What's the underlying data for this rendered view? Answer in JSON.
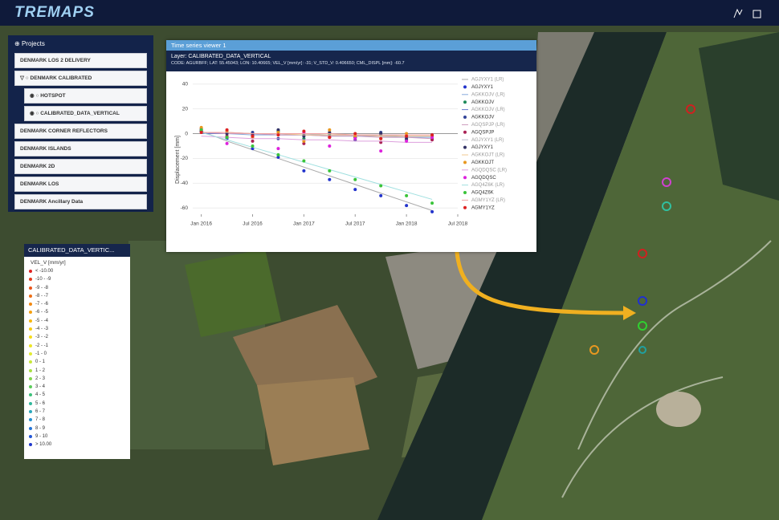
{
  "header": {
    "logo": "TREMAPS"
  },
  "projects": {
    "title": "Projects",
    "items": [
      {
        "label": "DENMARK LOS 2 DELIVERY"
      },
      {
        "label": "DENMARK CALIBRATED",
        "children": [
          {
            "label": "HOTSPOT"
          },
          {
            "label": "CALIBRATED_DATA_VERTICAL"
          }
        ]
      },
      {
        "label": "DENMARK CORNER REFLECTORS"
      },
      {
        "label": "DENMARK ISLANDS"
      },
      {
        "label": "DENMARK 2D"
      },
      {
        "label": "DENMARK LOS"
      },
      {
        "label": "DENMARK Ancillary Data"
      }
    ]
  },
  "legend_panel": {
    "title": "CALIBRATED_DATA_VERTIC...",
    "unit": "VEL_V [mm/yr]",
    "classes": [
      {
        "label": "< -10.00",
        "color": "#e02020"
      },
      {
        "label": "-10 - -9",
        "color": "#e53a1c"
      },
      {
        "label": "-9 - -8",
        "color": "#ea5418"
      },
      {
        "label": "-8 - -7",
        "color": "#ee6e14"
      },
      {
        "label": "-7 - -6",
        "color": "#f28810"
      },
      {
        "label": "-6 - -5",
        "color": "#f5a00e"
      },
      {
        "label": "-5 - -4",
        "color": "#f7b80e"
      },
      {
        "label": "-4 - -3",
        "color": "#f8cc12"
      },
      {
        "label": "-3 - -2",
        "color": "#f6dc1a"
      },
      {
        "label": "-2 - -1",
        "color": "#eee624"
      },
      {
        "label": "-1 - 0",
        "color": "#e2ec30"
      },
      {
        "label": "0 - 1",
        "color": "#c8e83a"
      },
      {
        "label": "1 - 2",
        "color": "#a8e044"
      },
      {
        "label": "2 - 3",
        "color": "#84d64e"
      },
      {
        "label": "3 - 4",
        "color": "#5ccc5a"
      },
      {
        "label": "4 - 5",
        "color": "#3cc27a"
      },
      {
        "label": "5 - 6",
        "color": "#30b89c"
      },
      {
        "label": "6 - 7",
        "color": "#2aa8bc"
      },
      {
        "label": "7 - 8",
        "color": "#2690d0"
      },
      {
        "label": "8 - 9",
        "color": "#2474d8"
      },
      {
        "label": "9 - 10",
        "color": "#2256d8"
      },
      {
        "label": "> 10.00",
        "color": "#2038cc"
      }
    ]
  },
  "time_series_window": {
    "title": "Time series viewer 1",
    "layer": "Layer: CALIBRATED_DATA_VERTICAL",
    "info": "CODE: AGURBFF; LAT: 55.45043; LON: 10.40665; VEL_V [mm/yr]: -31; V_STD_V: 0.406650; CML_DISPL [mm]: -60.7"
  },
  "chart_data": {
    "type": "scatter",
    "y_label": "Displacement [mm]",
    "x": [
      "2016-01",
      "2016-04",
      "2016-07",
      "2016-10",
      "2017-01",
      "2017-04",
      "2017-07",
      "2017-10",
      "2018-01",
      "2018-04"
    ],
    "xlim": [
      "2015-12",
      "2018-07"
    ],
    "xticks": [
      {
        "value": "2016-01",
        "label": "Jan 2016"
      },
      {
        "value": "2016-07",
        "label": "Jul 2016"
      },
      {
        "value": "2017-01",
        "label": "Jan 2017"
      },
      {
        "value": "2017-07",
        "label": "Jul 2017"
      },
      {
        "value": "2018-01",
        "label": "Jan 2018"
      },
      {
        "value": "2018-07",
        "label": "Jul 2018"
      }
    ],
    "ylim": [
      -65,
      45
    ],
    "yticks": [
      40,
      20,
      0,
      -20,
      -40,
      -60
    ],
    "grid": true,
    "series": [
      {
        "name": "AGJYXY1 (LR)",
        "color": "#aaaaaa",
        "mode": "line",
        "values": [
          2,
          -6,
          -13,
          -20,
          -27,
          -34,
          -41,
          -48,
          -55,
          -62
        ]
      },
      {
        "name": "AGJYXY1",
        "color": "#2233cc",
        "mode": "markers",
        "values": [
          2,
          -4,
          -12,
          -19,
          -30,
          -37,
          -45,
          -50,
          -58,
          -63
        ]
      },
      {
        "name": "AGKKOJV (LR)",
        "color": "#88aadd",
        "mode": "line",
        "values": [
          0,
          0,
          -1,
          -1,
          -1,
          -2,
          -2,
          -2,
          -3,
          -3
        ]
      },
      {
        "name": "AGKKOJV",
        "color": "#1e8a5a",
        "mode": "markers",
        "values": [
          3,
          1,
          -2,
          2,
          -4,
          0,
          -3,
          -1,
          -5,
          -2
        ]
      },
      {
        "name": "AGKKOJV (LR)",
        "color": "#6677cc",
        "mode": "line",
        "values": [
          0,
          0,
          0,
          -1,
          -1,
          -1,
          -1,
          -2,
          -2,
          -2
        ]
      },
      {
        "name": "AGKKOJV",
        "color": "#334499",
        "mode": "markers",
        "values": [
          2,
          -3,
          1,
          -4,
          0,
          -2,
          -5,
          1,
          -3,
          -4
        ]
      },
      {
        "name": "AGQSPJP (LR)",
        "color": "#cc99bb",
        "mode": "line",
        "values": [
          1,
          0,
          0,
          -1,
          -1,
          -2,
          -2,
          -3,
          -3,
          -4
        ]
      },
      {
        "name": "AGQSPJP",
        "color": "#aa2255",
        "mode": "markers",
        "values": [
          4,
          -2,
          -6,
          0,
          -8,
          -3,
          -1,
          -7,
          -2,
          -5
        ]
      },
      {
        "name": "AGJYXY1 (LR)",
        "color": "#bbbbcc",
        "mode": "line",
        "values": [
          1,
          1,
          0,
          0,
          0,
          -1,
          -1,
          -1,
          -2,
          -2
        ]
      },
      {
        "name": "AGJYXY1",
        "color": "#333366",
        "mode": "markers",
        "values": [
          2,
          0,
          -1,
          3,
          -2,
          1,
          -3,
          0,
          -4,
          -1
        ]
      },
      {
        "name": "AGKKOJT (LR)",
        "color": "#f0c890",
        "mode": "line",
        "values": [
          1,
          1,
          0,
          0,
          -1,
          -1,
          -1,
          -2,
          -2,
          -2
        ]
      },
      {
        "name": "AGKKOJT",
        "color": "#e89820",
        "mode": "markers",
        "values": [
          5,
          2,
          -3,
          1,
          -6,
          3,
          -2,
          -4,
          0,
          -3
        ]
      },
      {
        "name": "AGQDQSC (LR)",
        "color": "#dda0dd",
        "mode": "line",
        "values": [
          -2,
          -3,
          -4,
          -4,
          -5,
          -5,
          -6,
          -6,
          -7,
          -7
        ]
      },
      {
        "name": "AGQDQSC",
        "color": "#dd22dd",
        "mode": "markers",
        "values": [
          3,
          -8,
          -2,
          -12,
          1,
          -10,
          -4,
          -14,
          -6,
          -3
        ]
      },
      {
        "name": "AGQ4Z6K (LR)",
        "color": "#a0e0e0",
        "mode": "line",
        "values": [
          1,
          -5,
          -11,
          -17,
          -23,
          -29,
          -35,
          -41,
          -47,
          -53
        ]
      },
      {
        "name": "AGQ4Z6K",
        "color": "#3ac43a",
        "mode": "markers",
        "values": [
          3,
          -3,
          -10,
          -17,
          -22,
          -30,
          -37,
          -42,
          -50,
          -56
        ]
      },
      {
        "name": "AGMY1YZ (LR)",
        "color": "#f0a0a0",
        "mode": "line",
        "values": [
          1,
          1,
          0,
          0,
          0,
          0,
          -1,
          -1,
          -1,
          -1
        ]
      },
      {
        "name": "AGMY1YZ",
        "color": "#dd2222",
        "mode": "markers",
        "values": [
          1,
          3,
          -2,
          -1,
          2,
          -3,
          0,
          -4,
          -2,
          -1
        ]
      }
    ]
  }
}
